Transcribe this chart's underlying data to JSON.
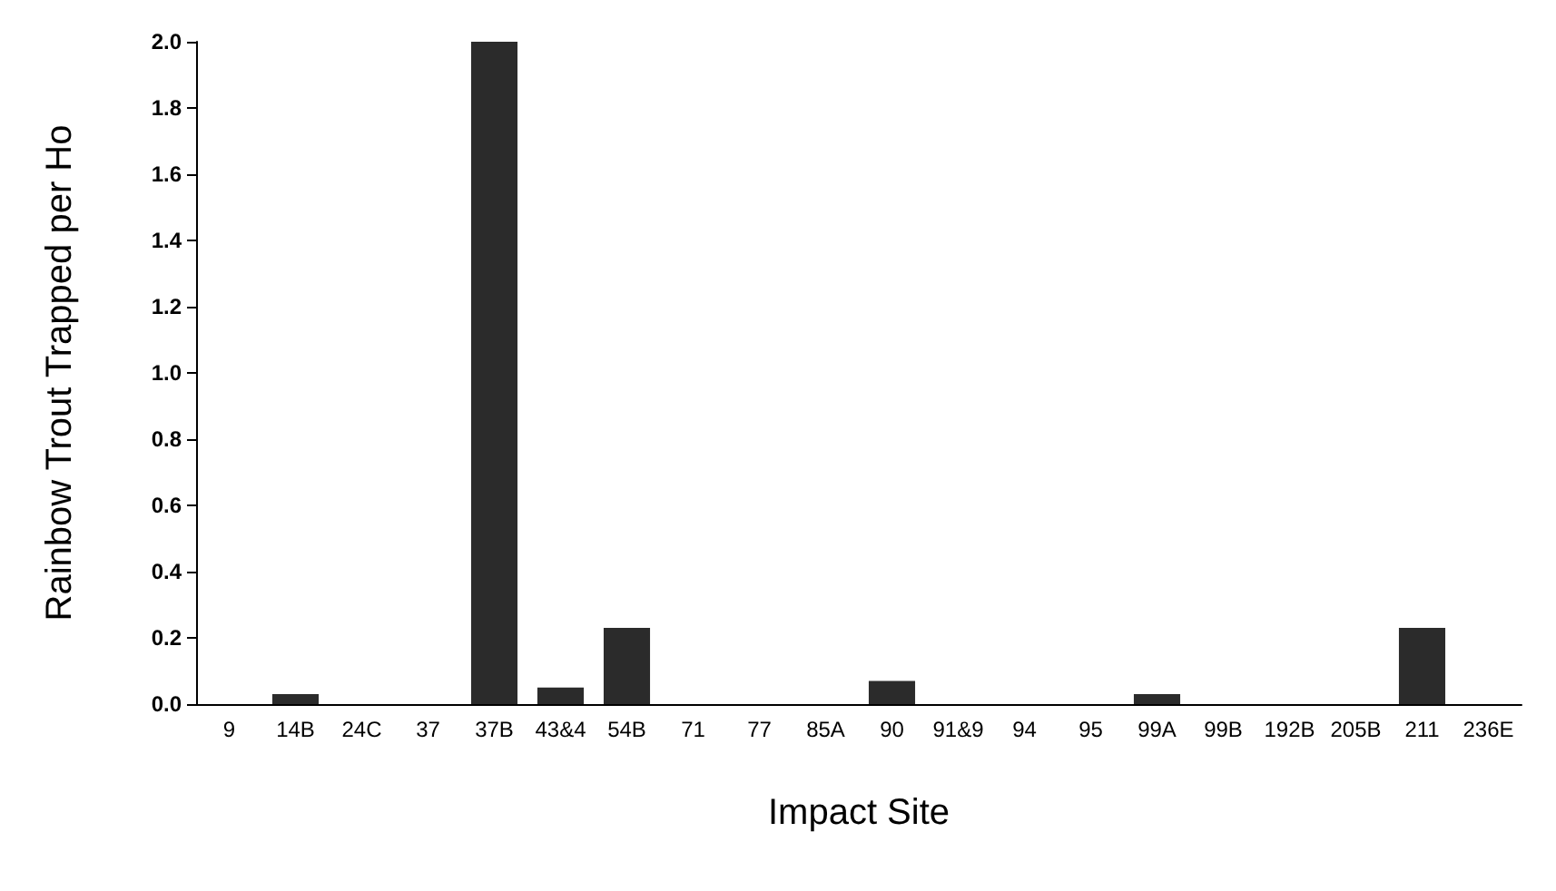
{
  "chart_data": {
    "type": "bar",
    "xlabel": "Impact Site",
    "ylabel": "Rainbow Trout Trapped per Ho",
    "categories": [
      "9",
      "14B",
      "24C",
      "37",
      "37B",
      "43&4",
      "54B",
      "71",
      "77",
      "85A",
      "90",
      "91&9",
      "94",
      "95",
      "99A",
      "99B",
      "192B",
      "205B",
      "211",
      "236E"
    ],
    "values": [
      0,
      0.03,
      0,
      0,
      2.0,
      0.05,
      0.23,
      0,
      0,
      0,
      0.07,
      0,
      0,
      0,
      0.03,
      0,
      0,
      0,
      0.23,
      0
    ],
    "color": "#2b2b2b",
    "ylim": [
      0,
      2.0
    ],
    "yticks": [
      {
        "value": 0,
        "label": "0.0"
      },
      {
        "value": 0.2,
        "label": "0.2"
      },
      {
        "value": 0.4,
        "label": "0.4"
      },
      {
        "value": 0.6,
        "label": "0.6"
      },
      {
        "value": 0.8,
        "label": "0.8"
      },
      {
        "value": 1,
        "label": "1.0"
      },
      {
        "value": 1.2,
        "label": "1.2"
      },
      {
        "value": 1.4,
        "label": "1.4"
      },
      {
        "value": 1.6,
        "label": "1.6"
      },
      {
        "value": 1.8,
        "label": "1.8"
      },
      {
        "value": 2,
        "label": "2.0"
      }
    ],
    "grid": false
  }
}
